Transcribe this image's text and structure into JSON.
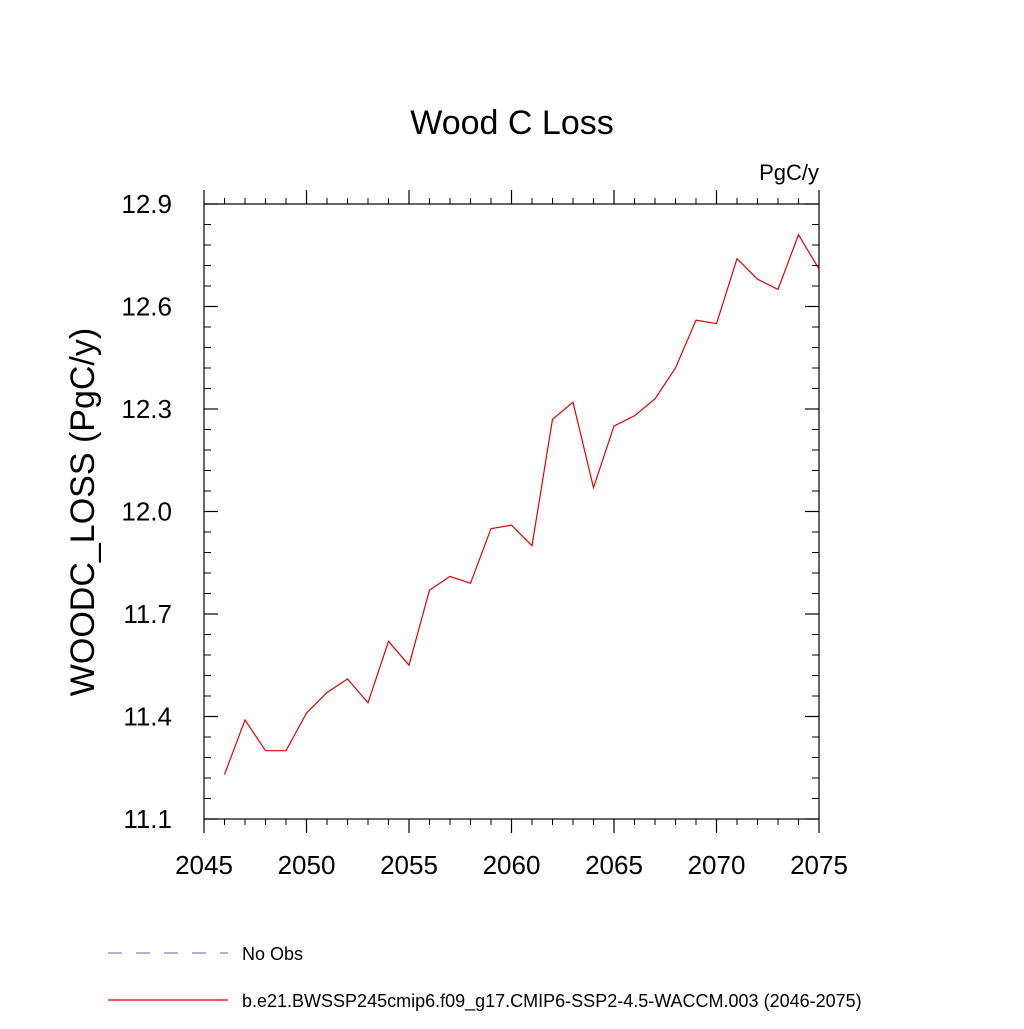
{
  "chart_data": {
    "type": "line",
    "title": "Wood C Loss",
    "units_label": "PgC/y",
    "ylabel": "WOODC_LOSS  (PgC/y)",
    "xlabel": "",
    "xlim": [
      2045,
      2075
    ],
    "ylim": [
      11.1,
      12.9
    ],
    "x_ticks": [
      2045,
      2050,
      2055,
      2060,
      2065,
      2070,
      2075
    ],
    "x_tick_labels": [
      "2045",
      "2050",
      "2055",
      "2060",
      "2065",
      "2070",
      "2075"
    ],
    "y_ticks": [
      11.1,
      11.4,
      11.7,
      12.0,
      12.3,
      12.6,
      12.9
    ],
    "y_tick_labels": [
      "11.1",
      "11.4",
      "11.7",
      "12.0",
      "12.3",
      "12.6",
      "12.9"
    ],
    "grid": false,
    "legend_position": "bottom-left",
    "legend": [
      {
        "label": "No Obs",
        "style": "dashed",
        "color": "#8c7fb8"
      },
      {
        "label": "b.e21.BWSSP245cmip6.f09_g17.CMIP6-SSP2-4.5-WACCM.003 (2046-2075)",
        "style": "solid",
        "color": "#e00000"
      }
    ],
    "series": [
      {
        "name": "b.e21.BWSSP245cmip6.f09_g17.CMIP6-SSP2-4.5-WACCM.003 (2046-2075)",
        "color": "#e00000",
        "x": [
          2046,
          2047,
          2048,
          2049,
          2050,
          2051,
          2052,
          2053,
          2054,
          2055,
          2056,
          2057,
          2058,
          2059,
          2060,
          2061,
          2062,
          2063,
          2064,
          2065,
          2066,
          2067,
          2068,
          2069,
          2070,
          2071,
          2072,
          2073,
          2074,
          2075
        ],
        "y": [
          11.23,
          11.39,
          11.3,
          11.3,
          11.41,
          11.47,
          11.51,
          11.44,
          11.62,
          11.55,
          11.77,
          11.81,
          11.79,
          11.95,
          11.96,
          11.9,
          12.27,
          12.32,
          12.07,
          12.25,
          12.28,
          12.33,
          12.42,
          12.56,
          12.55,
          12.74,
          12.68,
          12.65,
          12.81,
          12.71
        ]
      }
    ]
  }
}
